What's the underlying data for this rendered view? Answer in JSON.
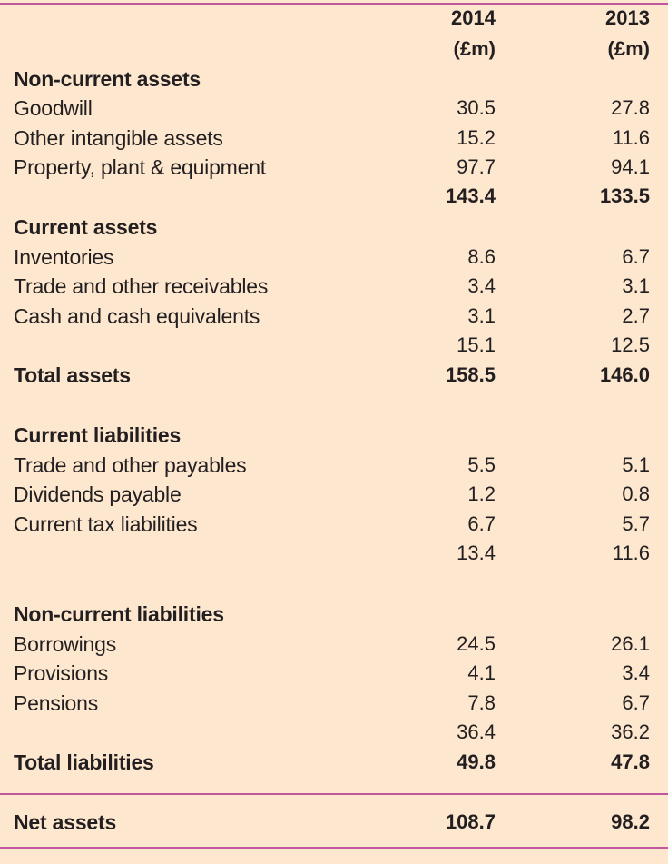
{
  "header": {
    "year1": "2014",
    "year2": "2013",
    "unit1": "(£m)",
    "unit2": "(£m)"
  },
  "rows": [
    {
      "label": "Non-current assets",
      "v2014": "",
      "v2013": "",
      "style": "heading"
    },
    {
      "label": "Goodwill",
      "v2014": "30.5",
      "v2013": "27.8",
      "style": ""
    },
    {
      "label": "Other intangible assets",
      "v2014": "15.2",
      "v2013": "11.6",
      "style": ""
    },
    {
      "label": "Property, plant & equipment",
      "v2014": "97.7",
      "v2013": "94.1",
      "style": ""
    },
    {
      "label": "",
      "v2014": "143.4",
      "v2013": "133.5",
      "style": "bold"
    },
    {
      "label": "Current assets",
      "v2014": "",
      "v2013": "",
      "style": "heading"
    },
    {
      "label": "Inventories",
      "v2014": "8.6",
      "v2013": "6.7",
      "style": ""
    },
    {
      "label": "Trade and other receivables",
      "v2014": "3.4",
      "v2013": "3.1",
      "style": ""
    },
    {
      "label": "Cash and cash equivalents",
      "v2014": "3.1",
      "v2013": "2.7",
      "style": ""
    },
    {
      "label": "",
      "v2014": "15.1",
      "v2013": "12.5",
      "style": ""
    },
    {
      "label": "Total assets",
      "v2014": "158.5",
      "v2013": "146.0",
      "style": "bold"
    },
    {
      "label": "Current liabilities",
      "v2014": "",
      "v2013": "",
      "style": "heading"
    },
    {
      "label": "Trade and other payables",
      "v2014": "5.5",
      "v2013": "5.1",
      "style": ""
    },
    {
      "label": "Dividends payable",
      "v2014": "1.2",
      "v2013": "0.8",
      "style": ""
    },
    {
      "label": "Current tax liabilities",
      "v2014": "6.7",
      "v2013": "5.7",
      "style": ""
    },
    {
      "label": "",
      "v2014": "13.4",
      "v2013": "11.6",
      "style": ""
    },
    {
      "label": "Non-current liabilities",
      "v2014": "",
      "v2013": "",
      "style": "heading"
    },
    {
      "label": "Borrowings",
      "v2014": "24.5",
      "v2013": "26.1",
      "style": ""
    },
    {
      "label": "Provisions",
      "v2014": "4.1",
      "v2013": "3.4",
      "style": ""
    },
    {
      "label": "Pensions",
      "v2014": "7.8",
      "v2013": "6.7",
      "style": ""
    },
    {
      "label": "",
      "v2014": "36.4",
      "v2013": "36.2",
      "style": ""
    },
    {
      "label": "Total liabilities",
      "v2014": "49.8",
      "v2013": "47.8",
      "style": "bold"
    },
    {
      "label": "Net assets",
      "v2014": "108.7",
      "v2013": "98.2",
      "style": "bold"
    }
  ]
}
